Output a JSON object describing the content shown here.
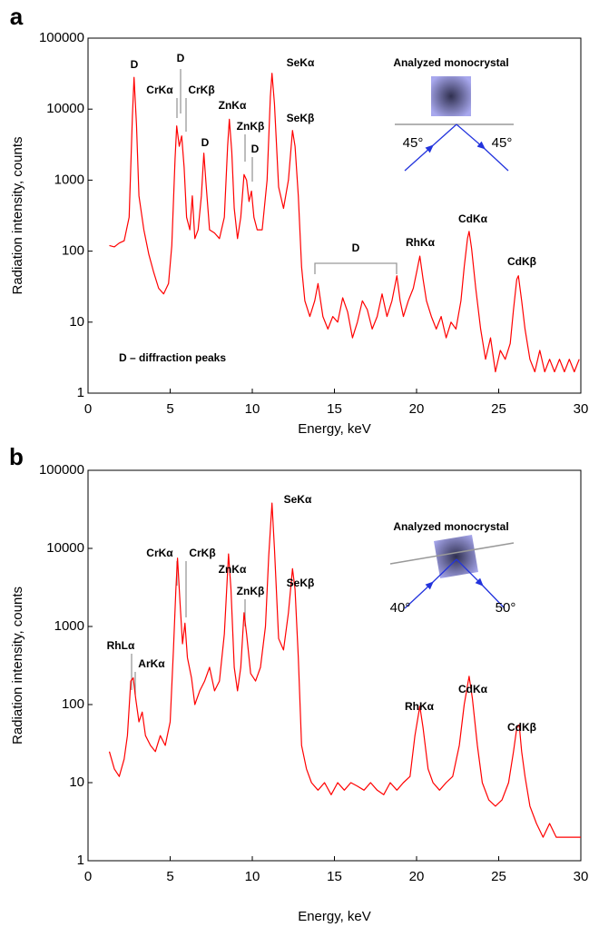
{
  "chart_data": [
    {
      "type": "line",
      "panel_label": "a",
      "xlabel": "Energy, keV",
      "ylabel": "Radiation intensity, counts",
      "xlim": [
        0,
        30
      ],
      "xticks": [
        0,
        5,
        10,
        15,
        20,
        25,
        30
      ],
      "ylim": [
        1,
        100000
      ],
      "yticks": [
        1,
        10,
        100,
        1000,
        10000,
        100000
      ],
      "log_y": true,
      "color": "#ff0000",
      "x": [
        1.3,
        1.6,
        1.9,
        2.2,
        2.5,
        2.7,
        2.8,
        2.95,
        3.1,
        3.4,
        3.7,
        4.0,
        4.3,
        4.6,
        4.9,
        5.1,
        5.3,
        5.4,
        5.55,
        5.7,
        5.85,
        6.0,
        6.2,
        6.35,
        6.5,
        6.7,
        6.9,
        7.05,
        7.2,
        7.4,
        7.7,
        8.0,
        8.3,
        8.5,
        8.6,
        8.75,
        8.9,
        9.1,
        9.3,
        9.5,
        9.65,
        9.8,
        9.95,
        10.1,
        10.3,
        10.6,
        10.9,
        11.1,
        11.2,
        11.35,
        11.6,
        11.9,
        12.2,
        12.45,
        12.6,
        12.8,
        13.0,
        13.2,
        13.5,
        13.8,
        14.0,
        14.3,
        14.6,
        14.9,
        15.2,
        15.5,
        15.8,
        16.1,
        16.4,
        16.7,
        17.0,
        17.3,
        17.6,
        17.9,
        18.2,
        18.5,
        18.8,
        19.0,
        19.2,
        19.5,
        19.8,
        20.0,
        20.2,
        20.4,
        20.6,
        20.9,
        21.2,
        21.5,
        21.8,
        22.1,
        22.4,
        22.7,
        22.9,
        23.1,
        23.2,
        23.35,
        23.6,
        23.9,
        24.2,
        24.5,
        24.8,
        25.1,
        25.4,
        25.7,
        25.9,
        26.1,
        26.2,
        26.4,
        26.6,
        26.9,
        27.2,
        27.5,
        27.8,
        28.1,
        28.4,
        28.7,
        29.0,
        29.3,
        29.6,
        29.9
      ],
      "values": [
        120,
        115,
        130,
        140,
        300,
        8000,
        28000,
        6000,
        600,
        200,
        90,
        50,
        30,
        25,
        35,
        120,
        2000,
        5800,
        3000,
        4200,
        1500,
        300,
        200,
        600,
        150,
        200,
        600,
        2400,
        800,
        200,
        180,
        150,
        300,
        3000,
        7200,
        2500,
        400,
        150,
        300,
        1200,
        1000,
        500,
        700,
        300,
        200,
        200,
        1000,
        15000,
        32000,
        12000,
        800,
        400,
        1000,
        5000,
        3000,
        600,
        60,
        20,
        12,
        20,
        35,
        12,
        8,
        12,
        10,
        22,
        14,
        6,
        10,
        20,
        15,
        8,
        12,
        25,
        12,
        20,
        45,
        20,
        12,
        20,
        30,
        50,
        85,
        40,
        20,
        12,
        8,
        12,
        6,
        10,
        8,
        20,
        60,
        150,
        190,
        110,
        30,
        8,
        3,
        6,
        2,
        4,
        3,
        5,
        15,
        40,
        45,
        20,
        8,
        3,
        2,
        4,
        2,
        3,
        2,
        3,
        2,
        3,
        2,
        3
      ],
      "annotations": [
        "D",
        "CrKα",
        "D",
        "CrKβ",
        "ZnKα",
        "D",
        "ZnKβ",
        "D",
        "SeKα",
        "SeKβ",
        "D",
        "RhKα",
        "CdKα",
        "CdKβ",
        "D – diffraction peaks"
      ],
      "inset": {
        "title": "Analyzed monocrystal",
        "left_angle": "45°",
        "right_angle": "45°"
      }
    },
    {
      "type": "line",
      "panel_label": "b",
      "xlabel": "Energy, keV",
      "ylabel": "Radiation intensity, counts",
      "xlim": [
        0,
        30
      ],
      "xticks": [
        0,
        5,
        10,
        15,
        20,
        25,
        30
      ],
      "ylim": [
        1,
        100000
      ],
      "yticks": [
        1,
        10,
        100,
        1000,
        10000,
        100000
      ],
      "log_y": true,
      "color": "#ff0000",
      "x": [
        1.3,
        1.6,
        1.9,
        2.2,
        2.4,
        2.6,
        2.75,
        2.9,
        3.1,
        3.3,
        3.5,
        3.8,
        4.1,
        4.4,
        4.7,
        5.0,
        5.2,
        5.35,
        5.45,
        5.6,
        5.75,
        5.9,
        6.05,
        6.3,
        6.5,
        6.8,
        7.1,
        7.4,
        7.7,
        8.0,
        8.3,
        8.55,
        8.7,
        8.9,
        9.1,
        9.3,
        9.5,
        9.65,
        9.9,
        10.2,
        10.5,
        10.8,
        11.0,
        11.2,
        11.35,
        11.6,
        11.9,
        12.2,
        12.45,
        12.6,
        12.8,
        13.0,
        13.3,
        13.6,
        14.0,
        14.4,
        14.8,
        15.2,
        15.6,
        16.0,
        16.4,
        16.8,
        17.2,
        17.6,
        18.0,
        18.4,
        18.8,
        19.2,
        19.6,
        19.9,
        20.2,
        20.4,
        20.7,
        21.0,
        21.4,
        21.8,
        22.2,
        22.6,
        22.9,
        23.2,
        23.4,
        23.7,
        24.0,
        24.4,
        24.8,
        25.2,
        25.6,
        25.9,
        26.1,
        26.25,
        26.4,
        26.6,
        26.9,
        27.3,
        27.7,
        28.1,
        28.5,
        28.9,
        29.3,
        29.7,
        30
      ],
      "values": [
        25,
        15,
        12,
        20,
        40,
        200,
        220,
        120,
        60,
        80,
        40,
        30,
        25,
        40,
        30,
        60,
        500,
        3000,
        7500,
        2000,
        600,
        1100,
        400,
        220,
        100,
        150,
        200,
        300,
        150,
        200,
        800,
        8500,
        3000,
        300,
        150,
        300,
        1500,
        800,
        250,
        200,
        300,
        1000,
        8000,
        38000,
        10000,
        700,
        500,
        1500,
        5500,
        3000,
        400,
        30,
        15,
        10,
        8,
        10,
        7,
        10,
        8,
        10,
        9,
        8,
        10,
        8,
        7,
        10,
        8,
        10,
        12,
        40,
        95,
        50,
        15,
        10,
        8,
        10,
        12,
        30,
        100,
        230,
        120,
        30,
        10,
        6,
        5,
        6,
        10,
        25,
        50,
        55,
        25,
        12,
        5,
        3,
        2,
        3,
        2,
        2,
        2,
        2,
        2
      ],
      "annotations": [
        "SeKα",
        "CrKα",
        "CrKβ",
        "ZnKα",
        "ZnKβ",
        "SeKβ",
        "RhLα",
        "ArKα",
        "RhKα",
        "CdKα",
        "CdKβ"
      ],
      "inset": {
        "title": "Analyzed monocrystal",
        "left_angle": "40°",
        "right_angle": "50°"
      }
    }
  ]
}
